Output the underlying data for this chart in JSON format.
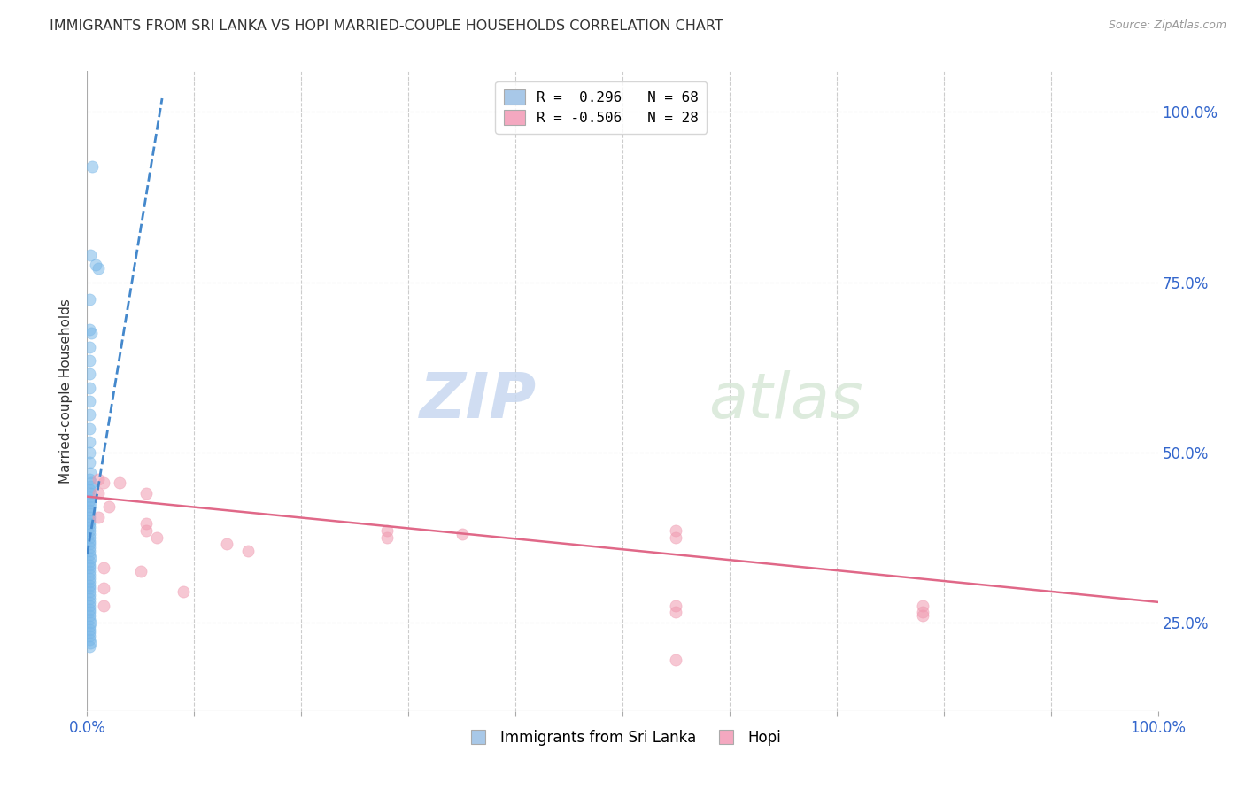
{
  "title": "IMMIGRANTS FROM SRI LANKA VS HOPI MARRIED-COUPLE HOUSEHOLDS CORRELATION CHART",
  "source": "Source: ZipAtlas.com",
  "ylabel": "Married-couple Households",
  "legend_entry1": "R =  0.296   N = 68",
  "legend_entry2": "R = -0.506   N = 28",
  "legend_color1": "#a8c8e8",
  "legend_color2": "#f4a8c0",
  "watermark_zip": "ZIP",
  "watermark_atlas": "atlas",
  "dot_color_blue": "#7ab8e8",
  "dot_color_pink": "#f09ab0",
  "line_color_blue": "#4488cc",
  "line_color_pink": "#e06888",
  "blue_scatter": [
    [
      0.005,
      0.92
    ],
    [
      0.003,
      0.79
    ],
    [
      0.008,
      0.775
    ],
    [
      0.01,
      0.77
    ],
    [
      0.002,
      0.725
    ],
    [
      0.002,
      0.68
    ],
    [
      0.004,
      0.675
    ],
    [
      0.002,
      0.655
    ],
    [
      0.002,
      0.635
    ],
    [
      0.002,
      0.615
    ],
    [
      0.002,
      0.595
    ],
    [
      0.002,
      0.575
    ],
    [
      0.002,
      0.555
    ],
    [
      0.002,
      0.535
    ],
    [
      0.002,
      0.515
    ],
    [
      0.002,
      0.5
    ],
    [
      0.002,
      0.485
    ],
    [
      0.003,
      0.47
    ],
    [
      0.002,
      0.46
    ],
    [
      0.004,
      0.455
    ],
    [
      0.003,
      0.45
    ],
    [
      0.002,
      0.445
    ],
    [
      0.003,
      0.44
    ],
    [
      0.002,
      0.435
    ],
    [
      0.002,
      0.43
    ],
    [
      0.003,
      0.425
    ],
    [
      0.002,
      0.42
    ],
    [
      0.002,
      0.415
    ],
    [
      0.002,
      0.41
    ],
    [
      0.002,
      0.405
    ],
    [
      0.002,
      0.4
    ],
    [
      0.002,
      0.395
    ],
    [
      0.002,
      0.39
    ],
    [
      0.002,
      0.385
    ],
    [
      0.002,
      0.38
    ],
    [
      0.002,
      0.375
    ],
    [
      0.002,
      0.37
    ],
    [
      0.002,
      0.365
    ],
    [
      0.002,
      0.36
    ],
    [
      0.002,
      0.355
    ],
    [
      0.002,
      0.35
    ],
    [
      0.003,
      0.345
    ],
    [
      0.002,
      0.34
    ],
    [
      0.002,
      0.335
    ],
    [
      0.002,
      0.33
    ],
    [
      0.002,
      0.325
    ],
    [
      0.002,
      0.32
    ],
    [
      0.002,
      0.315
    ],
    [
      0.002,
      0.31
    ],
    [
      0.002,
      0.305
    ],
    [
      0.002,
      0.3
    ],
    [
      0.002,
      0.295
    ],
    [
      0.002,
      0.29
    ],
    [
      0.002,
      0.285
    ],
    [
      0.002,
      0.28
    ],
    [
      0.002,
      0.275
    ],
    [
      0.002,
      0.27
    ],
    [
      0.002,
      0.265
    ],
    [
      0.002,
      0.26
    ],
    [
      0.002,
      0.255
    ],
    [
      0.003,
      0.25
    ],
    [
      0.002,
      0.245
    ],
    [
      0.002,
      0.24
    ],
    [
      0.002,
      0.235
    ],
    [
      0.002,
      0.23
    ],
    [
      0.002,
      0.225
    ],
    [
      0.003,
      0.22
    ],
    [
      0.002,
      0.215
    ]
  ],
  "pink_scatter": [
    [
      0.01,
      0.46
    ],
    [
      0.015,
      0.455
    ],
    [
      0.03,
      0.455
    ],
    [
      0.01,
      0.44
    ],
    [
      0.055,
      0.44
    ],
    [
      0.02,
      0.42
    ],
    [
      0.01,
      0.405
    ],
    [
      0.055,
      0.395
    ],
    [
      0.055,
      0.385
    ],
    [
      0.065,
      0.375
    ],
    [
      0.13,
      0.365
    ],
    [
      0.28,
      0.385
    ],
    [
      0.28,
      0.375
    ],
    [
      0.35,
      0.38
    ],
    [
      0.15,
      0.355
    ],
    [
      0.015,
      0.33
    ],
    [
      0.05,
      0.325
    ],
    [
      0.015,
      0.3
    ],
    [
      0.09,
      0.295
    ],
    [
      0.55,
      0.385
    ],
    [
      0.55,
      0.375
    ],
    [
      0.015,
      0.275
    ],
    [
      0.55,
      0.275
    ],
    [
      0.55,
      0.265
    ],
    [
      0.78,
      0.275
    ],
    [
      0.78,
      0.265
    ],
    [
      0.78,
      0.26
    ],
    [
      0.55,
      0.195
    ]
  ],
  "blue_line_x": [
    0.0,
    0.07
  ],
  "blue_line_y": [
    0.35,
    1.02
  ],
  "pink_line_x": [
    0.0,
    1.0
  ],
  "pink_line_y": [
    0.435,
    0.28
  ],
  "xlim": [
    0,
    1.0
  ],
  "ylim": [
    0.12,
    1.06
  ],
  "yticks": [
    0.25,
    0.5,
    0.75,
    1.0
  ],
  "ytick_labels_right": [
    "25.0%",
    "50.0%",
    "75.0%",
    "100.0%"
  ],
  "xtick_left_label": "0.0%",
  "xtick_right_label": "100.0%",
  "bottom_legend_label1": "Immigrants from Sri Lanka",
  "bottom_legend_label2": "Hopi"
}
